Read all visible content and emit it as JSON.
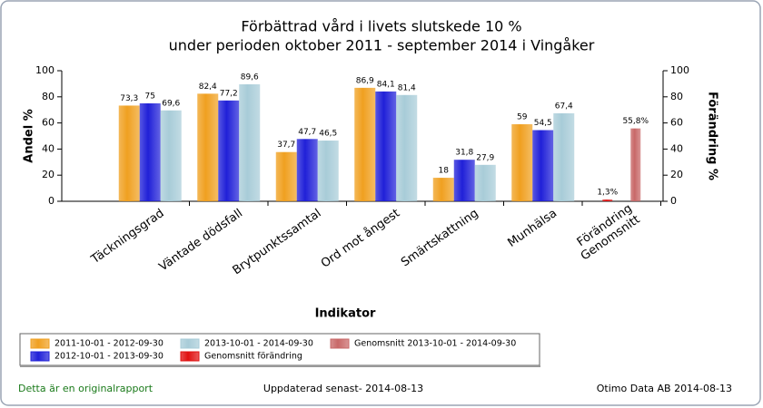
{
  "chart_data": {
    "type": "bar",
    "title": [
      "Förbättrad vård i livets slutskede 10 %",
      "under perioden oktober 2011 - september 2014 i  Vingåker"
    ],
    "x_label": "Indikator",
    "y_label": "Andel %",
    "y2_label": "Förändring %",
    "categories": [
      "Täckningsgrad",
      "Väntade dödsfall",
      "Brytpunktssamtal",
      "Ord mot ångest",
      "Smärtskattning",
      "Munhälsa",
      [
        "Förändring",
        "Genomsnitt"
      ]
    ],
    "series": [
      {
        "name": "2011-10-01 - 2012-09-30",
        "color": "#f0a020",
        "values": [
          73.3,
          82.4,
          37.7,
          86.9,
          18,
          59,
          null
        ],
        "value_labels": [
          "73,3",
          "82,4",
          "37,7",
          "86,9",
          "18",
          "59",
          null
        ]
      },
      {
        "name": "2012-10-01 - 2013-09-30",
        "color": "#2020d8",
        "values": [
          75,
          77.2,
          47.7,
          84.1,
          31.8,
          54.5,
          null
        ],
        "value_labels": [
          "75",
          "77,2",
          "47,7",
          "84,1",
          "31,8",
          "54,5",
          null
        ]
      },
      {
        "name": "2013-10-01 - 2014-09-30",
        "color": "#a8ccd8",
        "values": [
          69.6,
          89.6,
          46.5,
          81.4,
          27.9,
          67.4,
          null
        ],
        "value_labels": [
          "69,6",
          "89,6",
          "46,5",
          "81,4",
          "27,9",
          "67,4",
          null
        ]
      },
      {
        "name": "Genomsnitt förändring",
        "color": "#e01010",
        "axis": "y2",
        "values": [
          null,
          null,
          null,
          null,
          null,
          null,
          1.3
        ],
        "value_labels": [
          null,
          null,
          null,
          null,
          null,
          null,
          "1,3%"
        ]
      },
      {
        "name": "Genomsnitt 2013-10-01 - 2014-09-30",
        "color": "#c86868",
        "axis": "y2",
        "values": [
          null,
          null,
          null,
          null,
          null,
          null,
          55.8
        ],
        "value_labels": [
          null,
          null,
          null,
          null,
          null,
          null,
          "55,8%"
        ]
      }
    ],
    "ylim": [
      0,
      100
    ],
    "yticks": [
      0,
      20,
      40,
      60,
      80,
      100
    ],
    "y2lim": [
      0,
      100
    ],
    "y2ticks": [
      0,
      20,
      40,
      60,
      80,
      100
    ],
    "legend_order": [
      0,
      2,
      4,
      1,
      3
    ],
    "footer": {
      "left": "Detta är en originalrapport",
      "center": "Uppdaterad senast- 2014-08-13",
      "right": "Otimo Data AB 2014-08-13"
    }
  }
}
